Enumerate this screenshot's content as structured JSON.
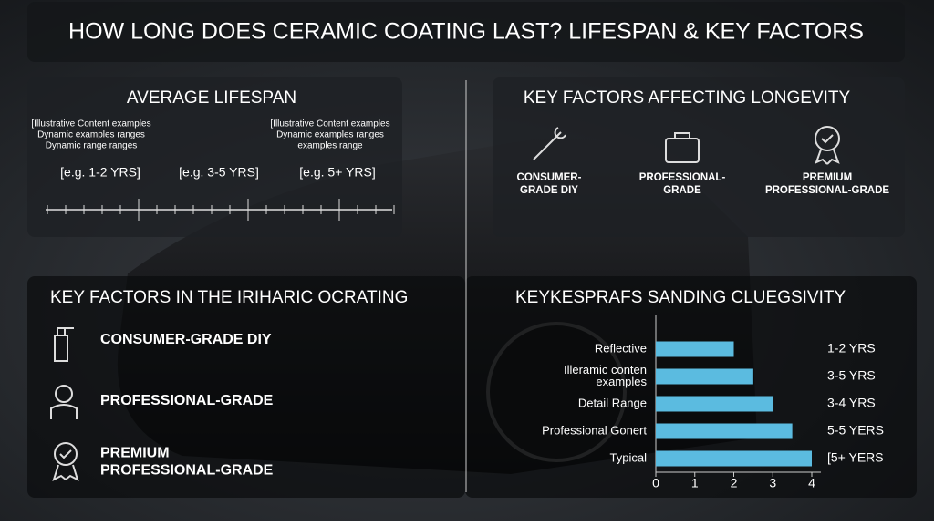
{
  "header": {
    "title": "HOW LONG DOES CERAMIC COATING LAST? LIFESPAN & KEY FACTORS"
  },
  "lifespan": {
    "title": "AVERAGE LIFESPAN",
    "note_left": [
      "[Illustrative Content examples",
      "Dynamic examples ranges",
      "Dynamic range ranges"
    ],
    "note_right": [
      "[Illustrative Content examples",
      "Dynamic examples ranges",
      "examples range"
    ],
    "ranges": [
      "[e.g. 1-2 YRS]",
      "[e.g. 3-5 YRS]",
      "[e.g. 5+ YRS]"
    ]
  },
  "factors": {
    "title": "KEY FACTORS AFFECTING LONGEVITY",
    "items": [
      [
        "CONSUMER-",
        "GRADE DIY"
      ],
      [
        "PROFESSIONAL-",
        "GRADE"
      ],
      [
        "PREMIUM",
        "PROFESSIONAL-GRADE"
      ]
    ]
  },
  "coating": {
    "title": "KEY FACTORS IN THE IRIHARIC OCRATING",
    "items": [
      [
        "CONSUMER-GRADE DIY"
      ],
      [
        "PROFESSIONAL-GRADE"
      ],
      [
        "PREMIUM",
        "PROFESSIONAL-GRADE"
      ]
    ]
  },
  "chart_data": {
    "type": "hbar",
    "title": "KEYKESPRAFS SANDING CLUEGSIVITY",
    "categories": [
      [
        "Reflective"
      ],
      [
        "Illeramic conten",
        "examples"
      ],
      [
        "Detail Range"
      ],
      [
        "Professional Gonert"
      ],
      [
        "Typical"
      ]
    ],
    "values": [
      2,
      2.5,
      3,
      3.5,
      4
    ],
    "color": "#5bbbe0",
    "xlim": [
      0,
      4
    ],
    "xticks": [
      0,
      1,
      2,
      3,
      4
    ],
    "annotations": [
      "1-2 YRS",
      "3-5 YRS",
      "3-4 YRS",
      "5-5 YERS",
      "[5+ YERS"
    ]
  }
}
